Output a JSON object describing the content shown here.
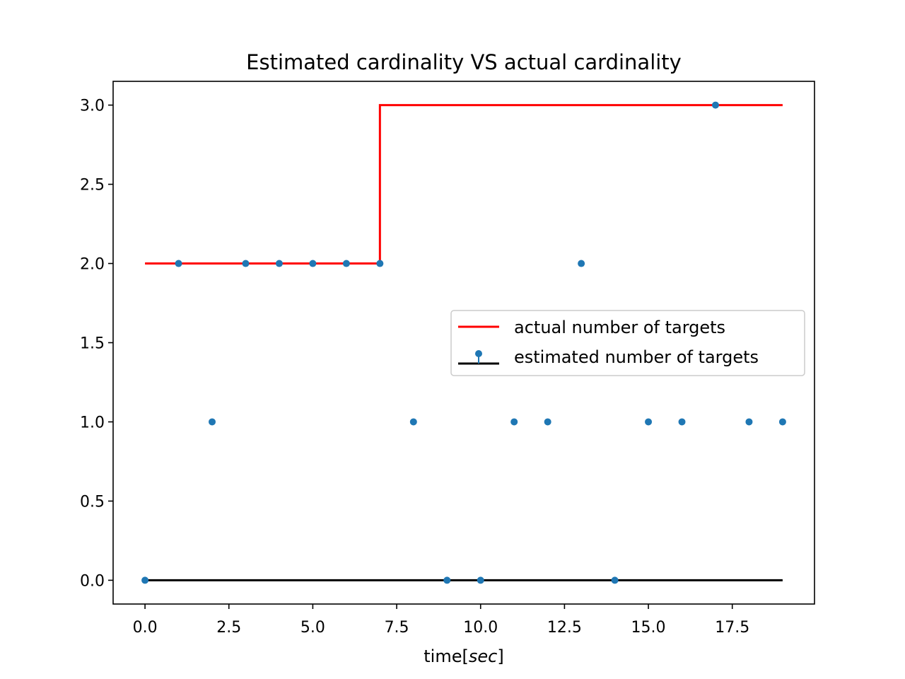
{
  "chart_data": {
    "type": "scatter",
    "title": "Estimated cardinality VS actual cardinality",
    "xlabel": {
      "text": "time",
      "open_bracket": "[",
      "unit": "sec",
      "close_bracket": "]"
    },
    "ylabel": "",
    "xlim": [
      -0.95,
      19.95
    ],
    "ylim": [
      -0.15,
      3.15
    ],
    "xticks": [
      0.0,
      2.5,
      5.0,
      7.5,
      10.0,
      12.5,
      15.0,
      17.5
    ],
    "xtick_labels": [
      "0.0",
      "2.5",
      "5.0",
      "7.5",
      "10.0",
      "12.5",
      "15.0",
      "17.5"
    ],
    "yticks": [
      0.0,
      0.5,
      1.0,
      1.5,
      2.0,
      2.5,
      3.0
    ],
    "ytick_labels": [
      "0.0",
      "0.5",
      "1.0",
      "1.5",
      "2.0",
      "2.5",
      "3.0"
    ],
    "grid": false,
    "legend_position": "center-right",
    "series": [
      {
        "name": "actual number of targets",
        "kind": "step-line",
        "color": "#ff0000",
        "x": [
          0,
          7,
          7,
          19
        ],
        "y": [
          2,
          2,
          3,
          3
        ]
      },
      {
        "name": "estimated number of targets",
        "kind": "stem",
        "marker_color": "#1f77b4",
        "baseline_color": "#000000",
        "baseline": 0,
        "x": [
          0,
          1,
          2,
          3,
          4,
          5,
          6,
          7,
          8,
          9,
          10,
          11,
          12,
          13,
          14,
          15,
          16,
          17,
          18,
          19
        ],
        "y": [
          0,
          2,
          1,
          2,
          2,
          2,
          2,
          2,
          1,
          0,
          0,
          1,
          1,
          2,
          0,
          1,
          1,
          3,
          1,
          1
        ]
      }
    ]
  }
}
